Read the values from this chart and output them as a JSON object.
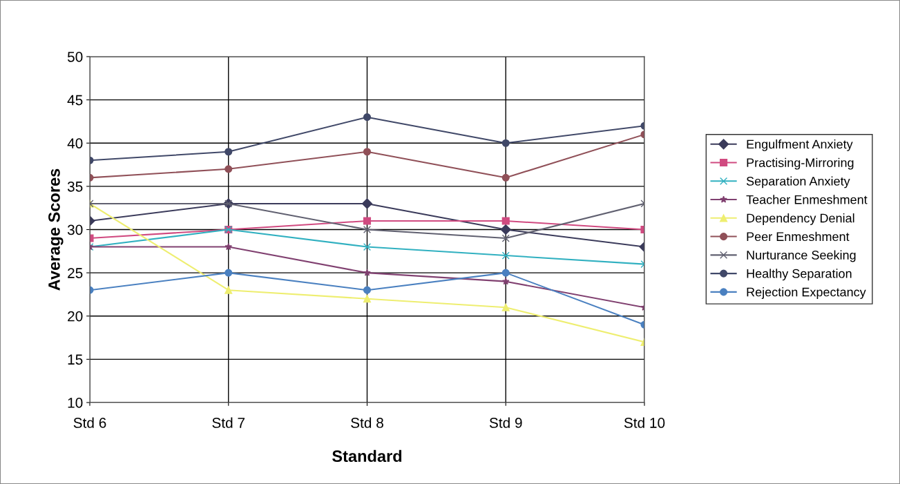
{
  "chart_data": {
    "type": "line",
    "xlabel": "Standard",
    "ylabel": "Average Scores",
    "categories": [
      "Std 6",
      "Std 7",
      "Std 8",
      "Std 9",
      "Std 10"
    ],
    "series": [
      {
        "name": "Engulfment Anxiety",
        "color": "#3a3a5a",
        "marker": "diamond",
        "values": [
          31,
          33,
          33,
          30,
          28
        ]
      },
      {
        "name": "Practising-Mirroring",
        "color": "#d04a80",
        "marker": "square",
        "values": [
          29,
          30,
          31,
          31,
          30
        ]
      },
      {
        "name": "Separation Anxiety",
        "color": "#30b0c0",
        "marker": "cross",
        "values": [
          28,
          30,
          28,
          27,
          26
        ]
      },
      {
        "name": "Teacher Enmeshment",
        "color": "#804070",
        "marker": "star",
        "values": [
          28,
          28,
          25,
          24,
          21
        ]
      },
      {
        "name": "Dependency Denial",
        "color": "#eeee70",
        "marker": "triangle",
        "values": [
          33,
          23,
          22,
          21,
          17
        ]
      },
      {
        "name": "Peer Enmeshment",
        "color": "#905058",
        "marker": "circle",
        "values": [
          36,
          37,
          39,
          36,
          41
        ]
      },
      {
        "name": "Nurturance Seeking",
        "color": "#606070",
        "marker": "cross",
        "values": [
          33,
          33,
          30,
          29,
          33
        ]
      },
      {
        "name": "Healthy Separation",
        "color": "#404868",
        "marker": "circle",
        "values": [
          38,
          39,
          43,
          40,
          42
        ]
      },
      {
        "name": "Rejection Expectancy",
        "color": "#4a80c0",
        "marker": "circle",
        "values": [
          23,
          25,
          23,
          25,
          19
        ]
      }
    ],
    "ylim": [
      10,
      50
    ],
    "yticks": [
      10,
      15,
      20,
      25,
      30,
      35,
      40,
      45,
      50
    ],
    "grid": true,
    "legend": "right"
  }
}
